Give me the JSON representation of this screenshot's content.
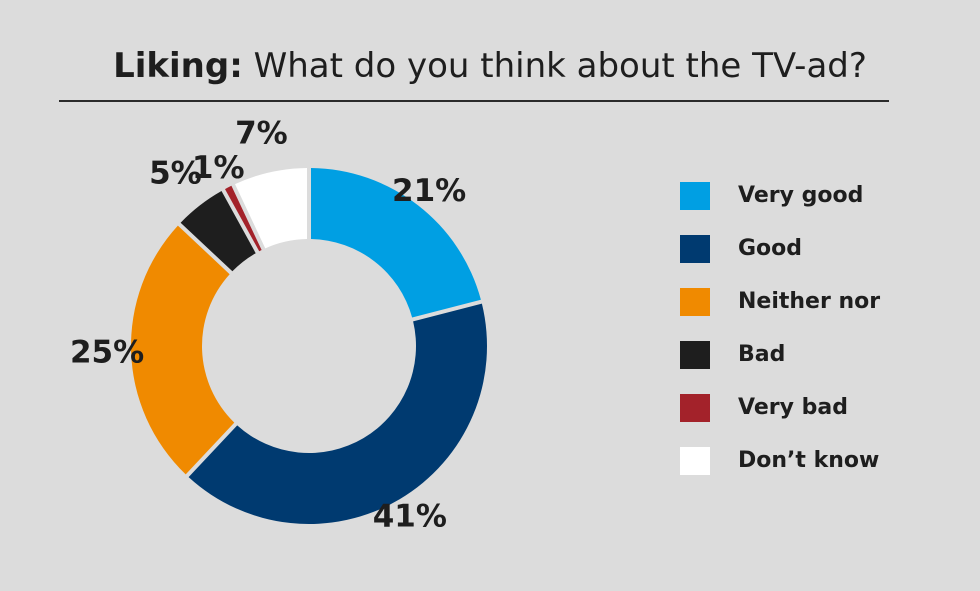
{
  "chart_data": {
    "type": "pie",
    "title_bold": "Liking:",
    "title_rest": "What do you think about the TV-ad?",
    "categories": [
      "Very good",
      "Good",
      "Neither nor",
      "Bad",
      "Very bad",
      "Don’t know"
    ],
    "values": [
      21,
      41,
      25,
      5,
      1,
      7
    ],
    "value_labels": [
      "21%",
      "41%",
      "25%",
      "5%",
      "1%",
      "7%"
    ],
    "colors": [
      "#009fe3",
      "#003a70",
      "#f08a00",
      "#1e1e1e",
      "#a3222a",
      "#ffffff"
    ],
    "donut": true,
    "start": "top",
    "direction": "clockwise",
    "legend_position": "right"
  }
}
